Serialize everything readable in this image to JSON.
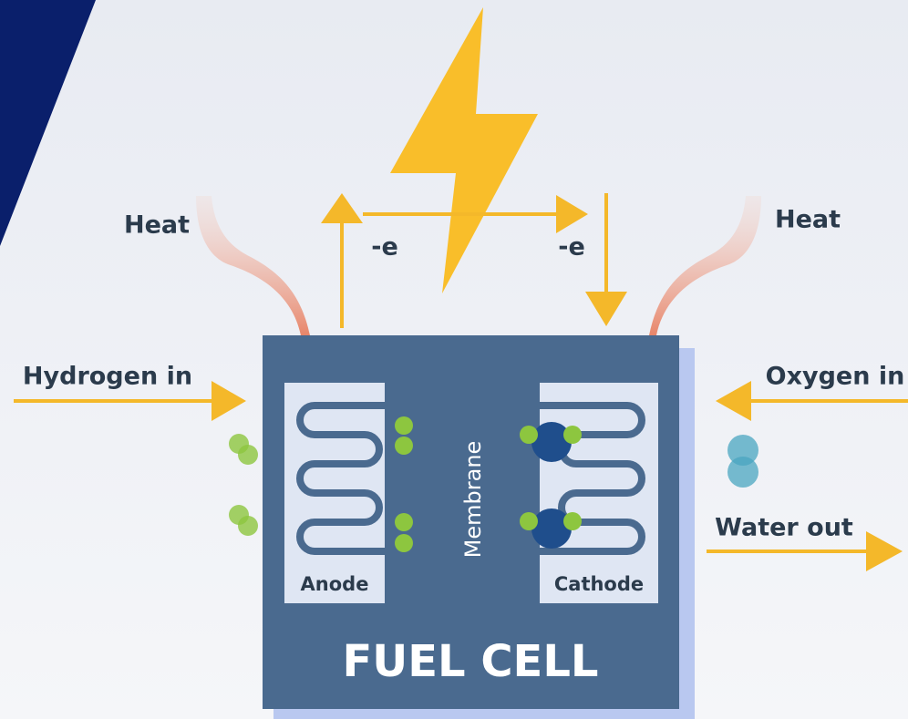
{
  "diagram": {
    "heat_left": "Heat",
    "heat_right": "Heat",
    "electron_left": "-e",
    "electron_right": "-e",
    "hydrogen_in": "Hydrogen in",
    "oxygen_in": "Oxygen in",
    "water_out": "Water out",
    "membrane": "Membrane",
    "anode": "Anode",
    "cathode": "Cathode",
    "title": "FUEL CELL"
  }
}
